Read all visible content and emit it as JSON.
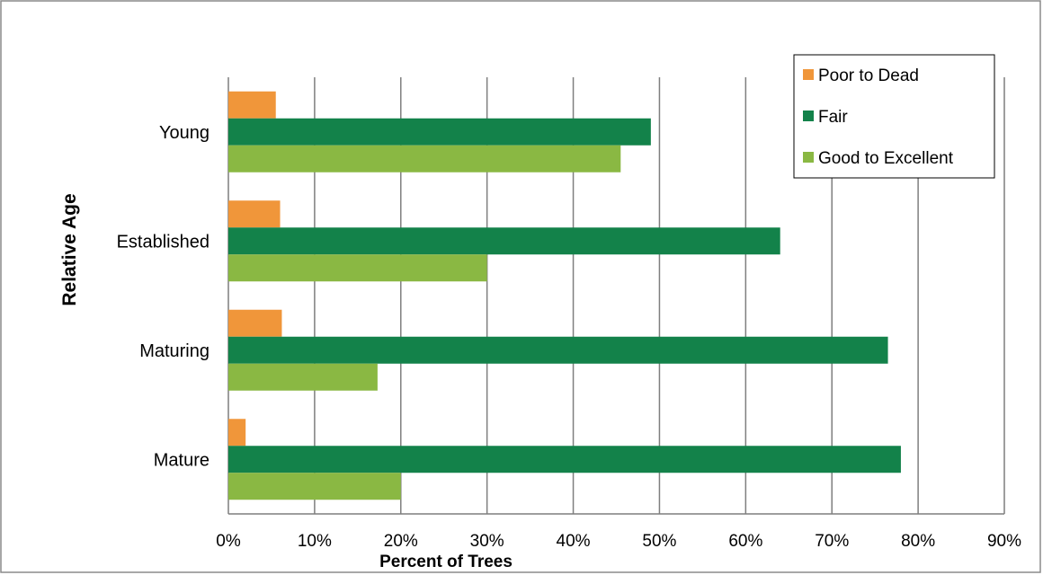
{
  "chart_data": {
    "type": "bar",
    "orientation": "horizontal",
    "categories": [
      "Young",
      "Established",
      "Maturing",
      "Mature"
    ],
    "series": [
      {
        "name": "Poor to Dead",
        "color": "#f0963a",
        "values": [
          5.5,
          6.0,
          6.2,
          2.0
        ]
      },
      {
        "name": "Fair",
        "color": "#13824a",
        "values": [
          49.0,
          64.0,
          76.5,
          78.0
        ]
      },
      {
        "name": "Good to Excellent",
        "color": "#8ab843",
        "values": [
          45.5,
          30.0,
          17.3,
          20.0
        ]
      }
    ],
    "xlabel": "Percent of Trees",
    "ylabel": "Relative Age",
    "xlim": [
      0,
      90
    ],
    "xticks": [
      0,
      10,
      20,
      30,
      40,
      50,
      60,
      70,
      80,
      90
    ],
    "xtick_labels": [
      "0%",
      "10%",
      "20%",
      "30%",
      "40%",
      "50%",
      "60%",
      "70%",
      "80%",
      "90%"
    ],
    "grid": true,
    "legend_position": "top-right"
  }
}
